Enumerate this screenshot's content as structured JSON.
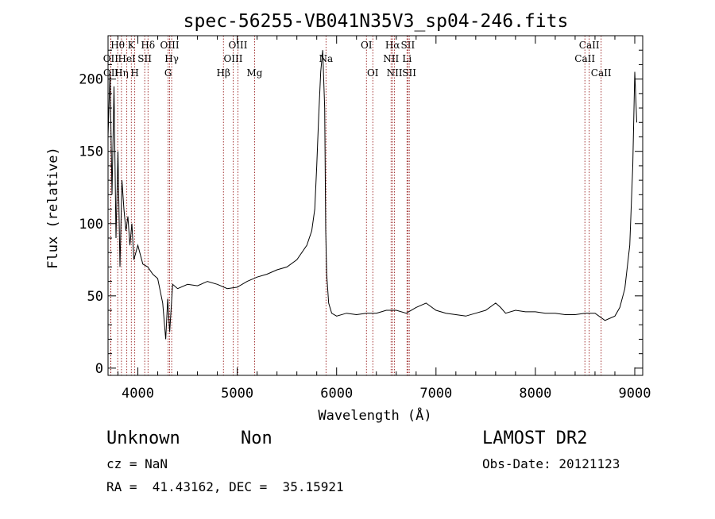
{
  "chart_data": {
    "type": "line",
    "title": "spec-56255-VB041N35V3_sp04-246.fits",
    "xlabel": "Wavelength (Å)",
    "ylabel": "Flux (relative)",
    "xlim": [
      3700,
      9080
    ],
    "ylim": [
      -5,
      230
    ],
    "xticks": [
      4000,
      5000,
      6000,
      7000,
      8000,
      9000
    ],
    "yticks": [
      0,
      50,
      100,
      150,
      200
    ],
    "xtick_labels": [
      "4000",
      "5000",
      "6000",
      "7000",
      "8000",
      "9000"
    ],
    "ytick_labels": [
      "0",
      "50",
      "100",
      "150",
      "200"
    ],
    "series": [
      {
        "x": [
          3700,
          3720,
          3740,
          3760,
          3780,
          3800,
          3820,
          3840,
          3860,
          3880,
          3900,
          3920,
          3940,
          3960,
          3980,
          4000,
          4050,
          4100,
          4150,
          4200,
          4250,
          4280,
          4300,
          4320,
          4350,
          4400,
          4500,
          4600,
          4700,
          4800,
          4900,
          5000,
          5100,
          5200,
          5300,
          5400,
          5500,
          5600,
          5700,
          5750,
          5780,
          5800,
          5820,
          5840,
          5860,
          5880,
          5890,
          5900,
          5920,
          5950,
          6000,
          6100,
          6200,
          6300,
          6400,
          6500,
          6600,
          6700,
          6800,
          6900,
          7000,
          7100,
          7200,
          7300,
          7400,
          7500,
          7600,
          7650,
          7700,
          7800,
          7900,
          8000,
          8100,
          8200,
          8300,
          8400,
          8500,
          8600,
          8700,
          8800,
          8850,
          8900,
          8950,
          8980,
          9000,
          9020
        ],
        "y": [
          160,
          205,
          120,
          195,
          90,
          150,
          70,
          130,
          110,
          95,
          105,
          85,
          100,
          75,
          80,
          85,
          72,
          70,
          65,
          62,
          45,
          20,
          48,
          25,
          58,
          55,
          58,
          57,
          60,
          58,
          55,
          56,
          60,
          63,
          65,
          68,
          70,
          75,
          85,
          95,
          110,
          140,
          175,
          205,
          220,
          180,
          95,
          65,
          45,
          38,
          36,
          38,
          37,
          38,
          38,
          40,
          40,
          38,
          42,
          45,
          40,
          38,
          37,
          36,
          38,
          40,
          45,
          42,
          38,
          40,
          39,
          39,
          38,
          38,
          37,
          37,
          38,
          38,
          33,
          36,
          42,
          55,
          85,
          140,
          205,
          170
        ]
      }
    ],
    "line_markers": [
      {
        "label": "OII",
        "wavelength": 3727,
        "row": 2
      },
      {
        "label": "OII",
        "wavelength": 3729,
        "row": 3
      },
      {
        "label": "Hθ",
        "wavelength": 3797,
        "row": 1
      },
      {
        "label": "Hη",
        "wavelength": 3835,
        "row": 3
      },
      {
        "label": "K",
        "wavelength": 3934,
        "row": 1
      },
      {
        "label": "HeI",
        "wavelength": 3889,
        "row": 2
      },
      {
        "label": "H",
        "wavelength": 3969,
        "row": 3
      },
      {
        "label": "SII",
        "wavelength": 4069,
        "row": 2
      },
      {
        "label": "Hδ",
        "wavelength": 4102,
        "row": 1
      },
      {
        "label": "OIII",
        "wavelength": 4320,
        "row": 1
      },
      {
        "label": "Hγ",
        "wavelength": 4340,
        "row": 2
      },
      {
        "label": "G",
        "wavelength": 4305,
        "row": 3
      },
      {
        "label": "Hβ",
        "wavelength": 4861,
        "row": 3
      },
      {
        "label": "OIII",
        "wavelength": 4959,
        "row": 2
      },
      {
        "label": "OIII",
        "wavelength": 5007,
        "row": 1
      },
      {
        "label": "Mg",
        "wavelength": 5175,
        "row": 3
      },
      {
        "label": "Na",
        "wavelength": 5893,
        "row": 2
      },
      {
        "label": "OI",
        "wavelength": 6300,
        "row": 1
      },
      {
        "label": "OI",
        "wavelength": 6364,
        "row": 3
      },
      {
        "label": "Hα",
        "wavelength": 6563,
        "row": 1
      },
      {
        "label": "NII",
        "wavelength": 6548,
        "row": 2
      },
      {
        "label": "NII",
        "wavelength": 6583,
        "row": 3
      },
      {
        "label": "SII",
        "wavelength": 6717,
        "row": 1
      },
      {
        "label": "Li",
        "wavelength": 6708,
        "row": 2
      },
      {
        "label": "SII",
        "wavelength": 6731,
        "row": 3
      },
      {
        "label": "CaII",
        "wavelength": 8542,
        "row": 1
      },
      {
        "label": "CaII",
        "wavelength": 8498,
        "row": 2
      },
      {
        "label": "CaII",
        "wavelength": 8662,
        "row": 3
      }
    ]
  },
  "footer": {
    "class_label": "Unknown",
    "subclass_label": "Non",
    "survey": "LAMOST DR2",
    "cz": "cz = NaN",
    "obs_date": "Obs-Date: 20121123",
    "radec": "RA =  41.43162, DEC =  35.15921"
  },
  "colors": {
    "line_marker": "#8b0000",
    "spectrum": "#000000"
  }
}
